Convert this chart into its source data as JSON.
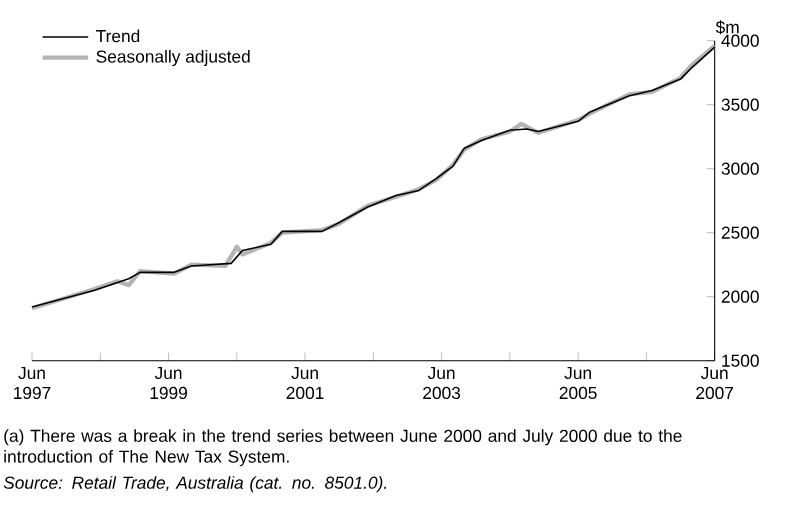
{
  "chart_data": {
    "type": "line",
    "ylabel": "$m",
    "xlim": [
      "1997-06",
      "2007-06"
    ],
    "ylim": [
      1500,
      4000
    ],
    "xticks": [
      {
        "value": "1997-06",
        "label": "Jun 1997"
      },
      {
        "value": "1998-06",
        "label": null
      },
      {
        "value": "1999-06",
        "label": "Jun 1999"
      },
      {
        "value": "2000-06",
        "label": null
      },
      {
        "value": "2001-06",
        "label": "Jun 2001"
      },
      {
        "value": "2002-06",
        "label": null
      },
      {
        "value": "2003-06",
        "label": "Jun 2003"
      },
      {
        "value": "2004-06",
        "label": null
      },
      {
        "value": "2005-06",
        "label": "Jun 2005"
      },
      {
        "value": "2006-06",
        "label": null
      },
      {
        "value": "2007-06",
        "label": "Jun 2007"
      }
    ],
    "yticks": [
      1500,
      2000,
      2500,
      3000,
      3500,
      4000
    ],
    "legend": "top left",
    "grid": false,
    "series": [
      {
        "name": "Trend",
        "color": "#000000",
        "x": [
          "1997-06",
          "1998-05",
          "1998-11",
          "1999-01",
          "1999-07",
          "1999-10",
          "2000-05",
          "2000-07",
          "2000-12",
          "2001-02",
          "2001-09",
          "2001-12",
          "2002-05",
          "2002-10",
          "2003-02",
          "2003-05",
          "2003-08",
          "2003-10",
          "2004-01",
          "2004-06",
          "2004-09",
          "2004-11",
          "2005-06",
          "2005-08",
          "2006-03",
          "2006-07",
          "2006-12",
          "2007-02",
          "2007-06"
        ],
        "values": [
          1920,
          2050,
          2140,
          2190,
          2190,
          2240,
          2260,
          2360,
          2410,
          2510,
          2510,
          2580,
          2700,
          2790,
          2830,
          2920,
          3020,
          3160,
          3220,
          3300,
          3310,
          3290,
          3370,
          3440,
          3570,
          3610,
          3700,
          3790,
          3950
        ]
      },
      {
        "name": "Seasonally adjusted",
        "color": "#b4b4b4",
        "x": [
          "1997-06",
          "1998-05",
          "1998-09",
          "1998-11",
          "1999-01",
          "1999-07",
          "1999-10",
          "2000-04",
          "2000-06",
          "2000-07",
          "2000-12",
          "2001-02",
          "2001-09",
          "2001-12",
          "2002-05",
          "2002-10",
          "2003-02",
          "2003-05",
          "2003-08",
          "2003-10",
          "2004-01",
          "2004-06",
          "2004-08",
          "2004-11",
          "2005-06",
          "2005-08",
          "2006-03",
          "2006-07",
          "2006-12",
          "2007-02",
          "2007-06"
        ],
        "values": [
          1910,
          2060,
          2120,
          2090,
          2200,
          2180,
          2250,
          2240,
          2390,
          2330,
          2420,
          2500,
          2520,
          2570,
          2710,
          2780,
          2840,
          2910,
          3030,
          3150,
          3230,
          3290,
          3350,
          3280,
          3380,
          3430,
          3580,
          3600,
          3710,
          3810,
          3960
        ]
      }
    ],
    "annotations": [
      "(a) There was a break in the trend series between June 2000 and July 2000 due to the introduction of The New Tax System.",
      "Source: Retail Trade, Australia (cat. no. 8501.0)."
    ]
  }
}
